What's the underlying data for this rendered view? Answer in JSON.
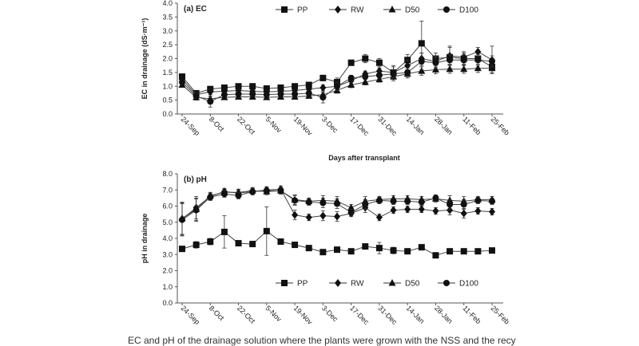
{
  "figure": {
    "caption": "EC and pH of the drainage solution where the plants were grown with the NSS and the recy"
  },
  "chart_data": [
    {
      "id": "ec",
      "type": "line",
      "title": "(a) EC",
      "xlabel": "Days after transplant",
      "ylabel": "EC in drainage (dS·m⁻¹)",
      "ylim": [
        0,
        4
      ],
      "ytick_step": 0.5,
      "ytick_decimals": 1,
      "x_tick_labels": [
        "24-Sep",
        "8-Oct",
        "22-Oct",
        "5-Nov",
        "19-Nov",
        "3-Dec",
        "17-Dec",
        "31-Dec",
        "14-Jan",
        "28-Jan",
        "11-Feb",
        "25-Feb"
      ],
      "n_points": 23,
      "legend_position": "top",
      "series": [
        {
          "name": "PP",
          "marker": "square",
          "values": [
            1.35,
            0.75,
            0.9,
            0.95,
            1.0,
            1.0,
            0.92,
            0.95,
            1.0,
            1.05,
            1.3,
            1.15,
            1.85,
            2.0,
            1.85,
            1.5,
            1.95,
            2.55,
            2.0,
            2.05,
            2.0,
            2.0,
            1.7
          ],
          "errors": [
            0.05,
            0.1,
            0.1,
            0.08,
            0.05,
            0.05,
            0.05,
            0.05,
            0.05,
            0.05,
            0.1,
            0.15,
            0.1,
            0.15,
            0.15,
            0.25,
            0.2,
            0.8,
            0.2,
            0.4,
            0.2,
            0.2,
            0.2
          ]
        },
        {
          "name": "RW",
          "marker": "diamond",
          "values": [
            1.25,
            0.7,
            0.8,
            0.82,
            0.85,
            0.82,
            0.8,
            0.82,
            0.85,
            0.9,
            0.95,
            1.0,
            1.2,
            1.45,
            1.55,
            1.5,
            1.75,
            2.0,
            1.9,
            2.1,
            2.05,
            2.25,
            1.95
          ],
          "errors": [
            0.05,
            0.1,
            0.1,
            0.08,
            0.05,
            0.05,
            0.05,
            0.05,
            0.05,
            0.05,
            0.1,
            0.1,
            0.1,
            0.1,
            0.1,
            0.2,
            0.2,
            0.2,
            0.2,
            0.3,
            0.2,
            0.15,
            0.5
          ]
        },
        {
          "name": "D50",
          "marker": "triangle",
          "values": [
            1.05,
            0.6,
            0.55,
            0.6,
            0.62,
            0.62,
            0.6,
            0.62,
            0.62,
            0.65,
            0.7,
            0.85,
            1.05,
            1.15,
            1.25,
            1.35,
            1.45,
            1.55,
            1.6,
            1.62,
            1.62,
            1.65,
            1.65
          ],
          "errors": [
            0.05,
            0.1,
            0.1,
            0.08,
            0.05,
            0.05,
            0.05,
            0.05,
            0.05,
            0.05,
            0.1,
            0.1,
            0.1,
            0.1,
            0.1,
            0.15,
            0.15,
            0.15,
            0.15,
            0.15,
            0.15,
            0.15,
            0.15
          ]
        },
        {
          "name": "D100",
          "marker": "circle",
          "values": [
            1.15,
            0.65,
            0.45,
            0.7,
            0.72,
            0.72,
            0.7,
            0.72,
            0.72,
            0.75,
            0.6,
            1.0,
            1.3,
            1.35,
            1.4,
            1.45,
            1.5,
            1.9,
            1.85,
            1.95,
            1.95,
            1.95,
            1.9
          ],
          "errors": [
            0.05,
            0.1,
            0.2,
            0.08,
            0.05,
            0.05,
            0.05,
            0.05,
            0.05,
            0.05,
            0.2,
            0.15,
            0.1,
            0.1,
            0.1,
            0.15,
            0.15,
            0.3,
            0.2,
            0.2,
            0.2,
            0.2,
            0.2
          ]
        }
      ]
    },
    {
      "id": "ph",
      "type": "line",
      "title": "(b) pH",
      "xlabel": "",
      "ylabel": "pH in drainage",
      "ylim": [
        0,
        8
      ],
      "ytick_step": 1,
      "ytick_decimals": 1,
      "x_tick_labels": [
        "24-Sep",
        "8-Oct",
        "22-Oct",
        "5-Nov",
        "19-Nov",
        "3-Dec",
        "17-Dec",
        "31-Dec",
        "14-Jan",
        "28-Jan",
        "11-Feb",
        "25-Feb"
      ],
      "n_points": 23,
      "legend_position": "bottom",
      "series": [
        {
          "name": "PP",
          "marker": "square",
          "values": [
            3.35,
            3.6,
            3.8,
            4.4,
            3.7,
            3.65,
            4.45,
            3.8,
            3.6,
            3.4,
            3.15,
            3.3,
            3.2,
            3.5,
            3.4,
            3.25,
            3.2,
            3.45,
            2.95,
            3.2,
            3.2,
            3.2,
            3.25
          ],
          "errors": [
            0.1,
            0.2,
            0.2,
            1.0,
            0.1,
            0.1,
            1.5,
            0.1,
            0.1,
            0.15,
            0.1,
            0.1,
            0.1,
            0.15,
            0.35,
            0.2,
            0.1,
            0.1,
            0.1,
            0.1,
            0.1,
            0.1,
            0.1
          ]
        },
        {
          "name": "RW",
          "marker": "diamond",
          "values": [
            5.2,
            5.9,
            6.6,
            6.9,
            6.8,
            6.9,
            7.0,
            7.05,
            5.45,
            5.3,
            5.4,
            5.35,
            5.55,
            5.9,
            5.3,
            5.75,
            5.8,
            5.8,
            5.7,
            5.75,
            5.55,
            5.7,
            5.65
          ],
          "errors": [
            1.0,
            0.7,
            0.2,
            0.2,
            0.2,
            0.2,
            0.2,
            0.2,
            0.3,
            0.2,
            0.3,
            0.3,
            0.2,
            0.3,
            0.2,
            0.2,
            0.2,
            0.2,
            0.2,
            0.3,
            0.3,
            0.2,
            0.2
          ]
        },
        {
          "name": "D50",
          "marker": "triangle",
          "values": [
            5.25,
            5.8,
            6.65,
            6.85,
            6.85,
            6.95,
            6.9,
            6.95,
            6.4,
            6.3,
            6.35,
            6.3,
            5.9,
            6.3,
            6.4,
            6.45,
            6.45,
            6.4,
            6.45,
            6.35,
            6.3,
            6.4,
            6.4
          ],
          "errors": [
            1.0,
            0.7,
            0.2,
            0.2,
            0.2,
            0.2,
            0.2,
            0.2,
            0.3,
            0.2,
            0.3,
            0.3,
            0.2,
            0.3,
            0.2,
            0.2,
            0.2,
            0.2,
            0.2,
            0.3,
            0.3,
            0.2,
            0.2
          ]
        },
        {
          "name": "D100",
          "marker": "circle",
          "values": [
            5.15,
            5.75,
            6.55,
            6.75,
            6.65,
            6.9,
            6.95,
            6.95,
            6.35,
            6.25,
            6.2,
            6.15,
            5.6,
            6.1,
            6.35,
            6.3,
            6.3,
            6.25,
            6.5,
            6.1,
            6.1,
            6.35,
            6.3
          ],
          "errors": [
            1.0,
            0.7,
            0.2,
            0.2,
            0.2,
            0.2,
            0.2,
            0.2,
            0.3,
            0.2,
            0.3,
            0.3,
            0.2,
            0.3,
            0.2,
            0.2,
            0.2,
            0.2,
            0.2,
            0.3,
            0.3,
            0.2,
            0.2
          ]
        }
      ]
    }
  ]
}
